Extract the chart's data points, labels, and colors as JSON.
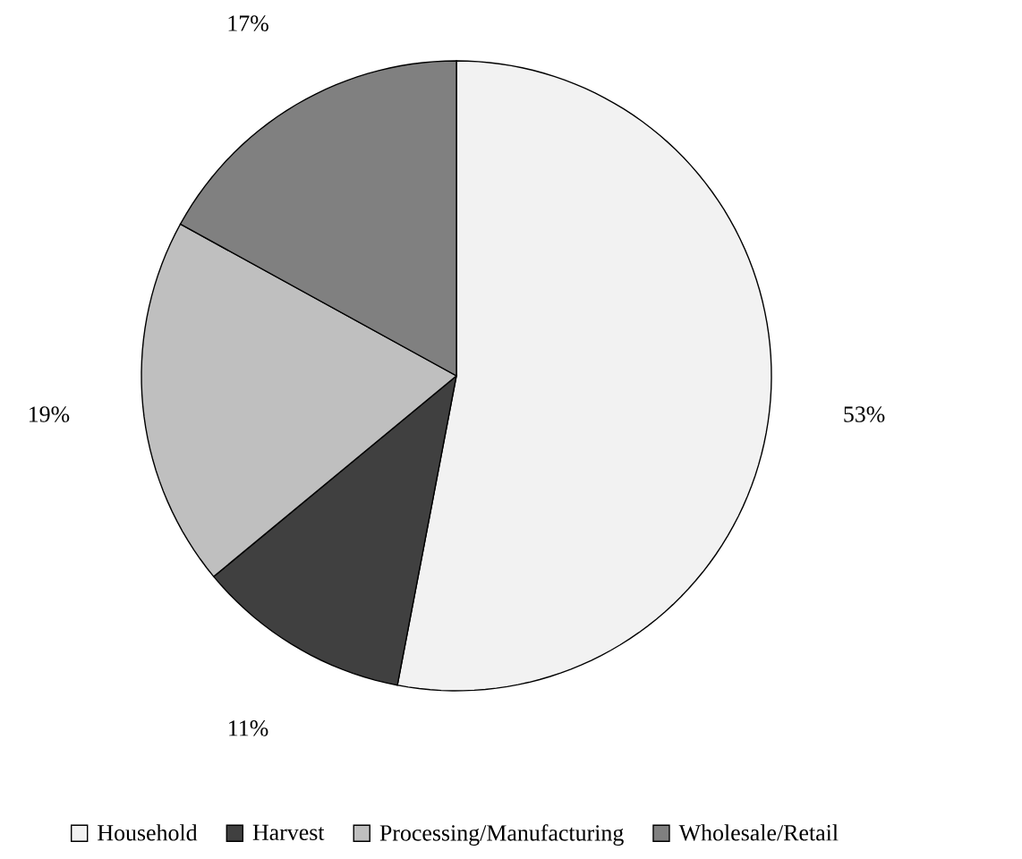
{
  "chart_data": {
    "type": "pie",
    "categories": [
      "Household",
      "Harvest",
      "Processing/Manufacturing",
      "Wholesale/Retail"
    ],
    "values": [
      53,
      11,
      19,
      17
    ],
    "value_labels": [
      "53%",
      "11%",
      "19%",
      "17%"
    ],
    "colors": [
      "#f2f2f2",
      "#404040",
      "#bfbfbf",
      "#808080"
    ],
    "legend": "bottom"
  }
}
